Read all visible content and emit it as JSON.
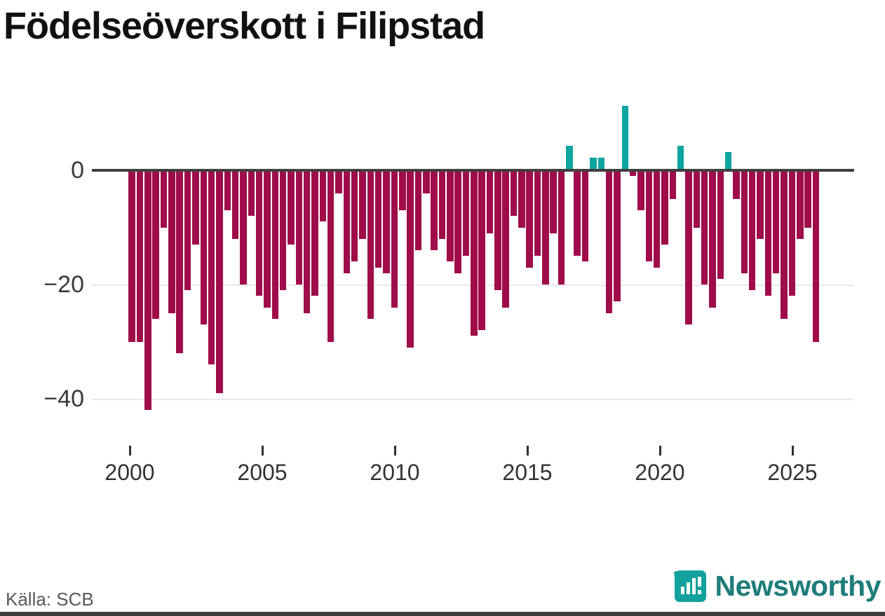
{
  "title": "Födelseöverskott i Filipstad",
  "source": "Källa: SCB",
  "brand": {
    "name": "Newsworthy",
    "wordmark_color": "#1e7d7b",
    "icon_color": "#12a19c"
  },
  "chart_data": {
    "type": "bar",
    "title": "Födelseöverskott i Filipstad",
    "xlabel": "",
    "ylabel": "",
    "x_ticks": [
      2000,
      2005,
      2010,
      2015,
      2020,
      2025
    ],
    "y_ticks": [
      0,
      -20,
      -40
    ],
    "ylim": [
      -45,
      13
    ],
    "x_start_year": 2000.1,
    "x_step_years": 0.3,
    "grid": "horizontal",
    "legend": "none",
    "negative_color": "#a00c49",
    "positive_color": "#0ea5a0",
    "values": [
      -30,
      -30,
      -42,
      -26,
      -10,
      -25,
      -32,
      -21,
      -13,
      -27,
      -34,
      -39,
      -7,
      -12,
      -20,
      -8,
      -22,
      -24,
      -26,
      -21,
      -13,
      -20,
      -25,
      -22,
      -9,
      -30,
      -4,
      -18,
      -16,
      -12,
      -26,
      -17,
      -18,
      -24,
      -7,
      -31,
      -14,
      -4,
      -14,
      -12,
      -16,
      -18,
      -15,
      -29,
      -28,
      -11,
      -21,
      -24,
      -8,
      -10,
      -17,
      -15,
      -20,
      -11,
      -20,
      4,
      -15,
      -16,
      2,
      2,
      -25,
      -23,
      11,
      -1,
      -7,
      -16,
      -17,
      -13,
      -5,
      4,
      -27,
      -10,
      -20,
      -24,
      -19,
      3,
      -5,
      -18,
      -21,
      -12,
      -22,
      -18,
      -26,
      -22,
      -12,
      -10,
      -30
    ]
  }
}
